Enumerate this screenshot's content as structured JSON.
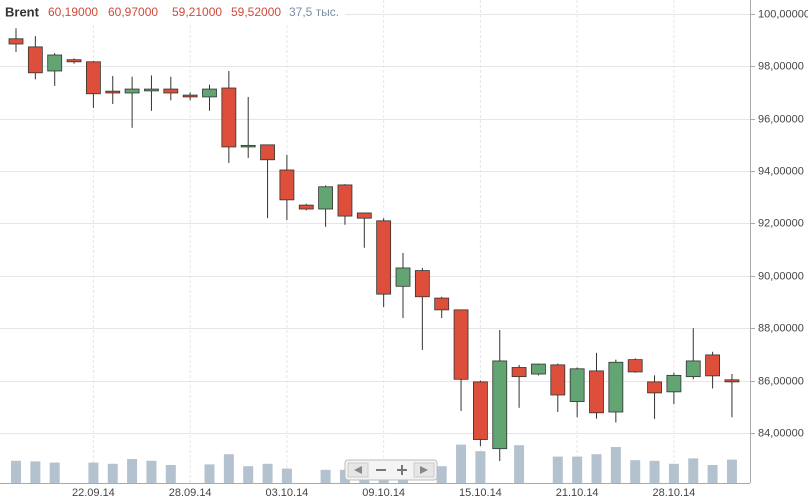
{
  "chart_data": {
    "type": "candlestick",
    "title": "Brent",
    "quote": [
      "60,19000",
      "60,97000",
      "59,21000",
      "59,52000"
    ],
    "volume_label": "37,5 тыс.",
    "categories": [
      null,
      null,
      null,
      null,
      "22.09.14",
      null,
      null,
      null,
      null,
      "28.09.14",
      null,
      null,
      null,
      null,
      "03.10.14",
      null,
      null,
      null,
      null,
      "09.10.14",
      null,
      null,
      null,
      null,
      "15.10.14",
      null,
      null,
      null,
      null,
      "21.10.14",
      null,
      null,
      null,
      null,
      "28.10.14",
      null,
      null,
      null
    ],
    "open": [
      99.05,
      98.74,
      97.82,
      98.25,
      98.17,
      97.05,
      96.98,
      97.06,
      97.13,
      96.9,
      96.83,
      97.17,
      94.92,
      95.0,
      94.04,
      92.7,
      92.55,
      93.47,
      92.4,
      92.1,
      89.6,
      90.2,
      89.15,
      88.7,
      85.95,
      83.4,
      86.5,
      86.25,
      86.6,
      85.2,
      86.37,
      84.8,
      86.8,
      85.95,
      85.57,
      86.15,
      86.98,
      86.03
    ],
    "high": [
      99.45,
      99.15,
      98.5,
      98.3,
      98.2,
      97.63,
      97.6,
      97.65,
      97.6,
      97.0,
      97.3,
      97.82,
      96.83,
      95.0,
      94.62,
      92.75,
      93.45,
      93.5,
      92.4,
      92.2,
      90.87,
      90.3,
      89.2,
      88.7,
      86.0,
      87.93,
      86.6,
      86.65,
      86.65,
      86.5,
      87.06,
      86.8,
      86.85,
      86.2,
      86.3,
      88.0,
      87.1,
      86.25
    ],
    "low": [
      98.55,
      97.5,
      97.25,
      98.1,
      96.41,
      96.56,
      95.65,
      96.3,
      96.7,
      96.7,
      96.3,
      94.31,
      94.5,
      92.2,
      92.13,
      92.5,
      91.87,
      91.95,
      91.07,
      88.81,
      88.39,
      87.17,
      88.39,
      84.84,
      83.5,
      82.93,
      84.96,
      86.2,
      84.8,
      84.6,
      84.55,
      84.4,
      86.3,
      84.54,
      85.1,
      86.05,
      85.7,
      84.6
    ],
    "close": [
      98.85,
      97.75,
      98.43,
      98.17,
      96.95,
      96.98,
      97.13,
      97.13,
      96.98,
      96.83,
      97.13,
      94.92,
      94.98,
      94.43,
      92.9,
      92.55,
      93.4,
      92.28,
      92.2,
      89.3,
      90.3,
      89.2,
      88.7,
      86.05,
      83.75,
      86.75,
      86.15,
      86.63,
      85.45,
      86.45,
      84.77,
      86.7,
      86.33,
      85.53,
      86.2,
      86.75,
      86.18,
      85.95
    ],
    "volume": [
      37,
      36,
      34,
      null,
      34,
      32,
      40,
      37,
      30,
      null,
      31,
      48,
      28,
      32,
      24,
      null,
      22,
      22,
      28,
      34,
      38,
      null,
      28,
      64,
      53,
      null,
      63,
      null,
      44,
      44,
      48,
      60,
      38,
      37,
      32,
      41,
      30,
      39
    ],
    "ylim": [
      82.09,
      100.53
    ],
    "yticks": [
      {
        "value": 84,
        "label": "84,00000"
      },
      {
        "value": 86,
        "label": "86,00000"
      },
      {
        "value": 88,
        "label": "88,00000"
      },
      {
        "value": 90,
        "label": "90,00000"
      },
      {
        "value": 92,
        "label": "92,00000"
      },
      {
        "value": 94,
        "label": "94,00000"
      },
      {
        "value": 96,
        "label": "96,00000"
      },
      {
        "value": 98,
        "label": "98,00000"
      },
      {
        "value": 100,
        "label": "100,00000"
      }
    ],
    "grid": true,
    "up_color": "#62a572",
    "down_color": "#dd4f3b",
    "volume_color": "#b3c2ce"
  }
}
